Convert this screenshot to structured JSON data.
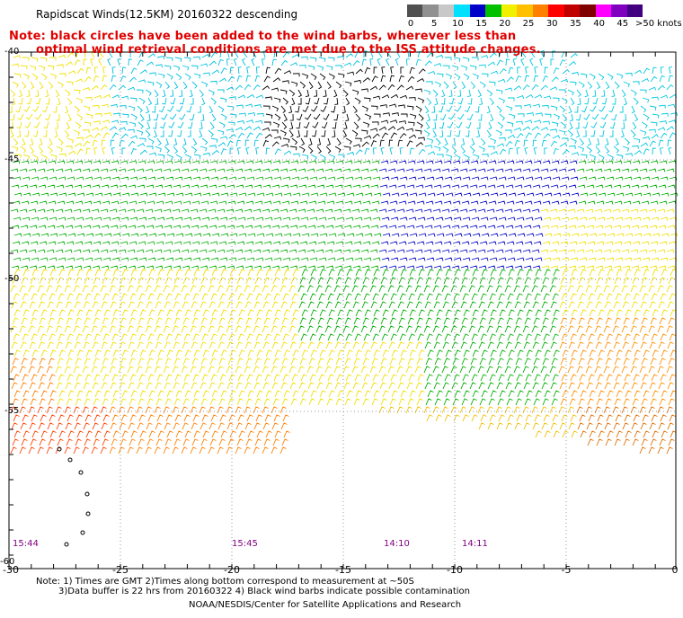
{
  "title": "Rapidscat Winds(12.5KM) 20160322 descending",
  "note": {
    "line1": "Note: black circles have been added to the wind barbs, wherever less than",
    "line2": "optimal wind retrieval conditions are met due to the ISS attitude changes."
  },
  "legend": {
    "labels": [
      "0",
      "5",
      "10",
      "15",
      "20",
      "25",
      "30",
      "35",
      "40",
      "45",
      ">50 knots"
    ],
    "colors": [
      "#505050",
      "#909090",
      "#c8c8c8",
      "#00e0ff",
      "#0000c8",
      "#00c000",
      "#f0f000",
      "#ffc000",
      "#ff8000",
      "#ff0000",
      "#c00000",
      "#800000",
      "#ff00ff",
      "#8000c0",
      "#400080"
    ]
  },
  "lat_labels": [
    "-40",
    "-45",
    "-50",
    "-55",
    "-60"
  ],
  "lon_labels": [
    "-30",
    "-25",
    "-20",
    "-15",
    "-10",
    "-5",
    "0"
  ],
  "time_labels": [
    "15:44",
    "15:45",
    "14:10",
    "14:11"
  ],
  "footnote": {
    "line1": "Note: 1) Times are GMT 2)Times along bottom correspond to measurement at ~50S",
    "line2": "3)Data buffer is 22 hrs from 20160322 4) Black wind barbs indicate possible contamination"
  },
  "credit": "NOAA/NESDIS/Center for Satellite Applications and Research"
}
